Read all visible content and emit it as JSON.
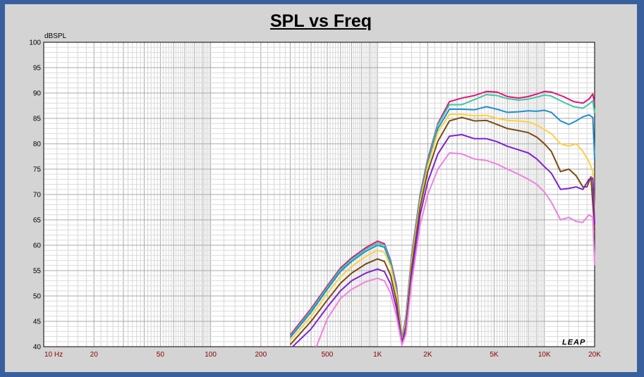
{
  "chart_data": {
    "type": "line",
    "title": "SPL vs Freq",
    "ylabel": "dBSPL",
    "xlabel": "",
    "xscale": "log",
    "xlim": [
      10,
      20000
    ],
    "ylim": [
      40,
      100
    ],
    "grid": true,
    "yticks": [
      40,
      45,
      50,
      55,
      60,
      65,
      70,
      75,
      80,
      85,
      90,
      95,
      100
    ],
    "xticks": [
      {
        "v": 10,
        "label": "10  Hz"
      },
      {
        "v": 20,
        "label": "20"
      },
      {
        "v": 50,
        "label": "50"
      },
      {
        "v": 100,
        "label": "100"
      },
      {
        "v": 200,
        "label": "200"
      },
      {
        "v": 500,
        "label": "500"
      },
      {
        "v": 1000,
        "label": "1K"
      },
      {
        "v": 2000,
        "label": "2K"
      },
      {
        "v": 5000,
        "label": "5K"
      },
      {
        "v": 10000,
        "label": "10K"
      },
      {
        "v": 20000,
        "label": "20K"
      }
    ],
    "series": [
      {
        "color": "#e0147a",
        "points": [
          [
            300,
            42.3
          ],
          [
            400,
            47.5
          ],
          [
            500,
            52
          ],
          [
            600,
            55.5
          ],
          [
            700,
            57.5
          ],
          [
            850,
            59.5
          ],
          [
            1000,
            60.8
          ],
          [
            1100,
            60.3
          ],
          [
            1200,
            57
          ],
          [
            1300,
            52
          ],
          [
            1400,
            41.5
          ],
          [
            1480,
            46
          ],
          [
            1600,
            58
          ],
          [
            1800,
            70
          ],
          [
            2000,
            77
          ],
          [
            2300,
            84
          ],
          [
            2700,
            88.3
          ],
          [
            3200,
            89
          ],
          [
            3800,
            89.5
          ],
          [
            4500,
            90.3
          ],
          [
            5200,
            90.2
          ],
          [
            6000,
            89.3
          ],
          [
            7000,
            89
          ],
          [
            8000,
            89.3
          ],
          [
            9000,
            89.8
          ],
          [
            10000,
            90.3
          ],
          [
            11000,
            90.2
          ],
          [
            13000,
            89.3
          ],
          [
            15000,
            88.3
          ],
          [
            17000,
            88
          ],
          [
            18500,
            88.8
          ],
          [
            19500,
            89.8
          ],
          [
            20000,
            88
          ]
        ]
      },
      {
        "color": "#40c8a0",
        "points": [
          [
            300,
            42
          ],
          [
            400,
            47.2
          ],
          [
            500,
            51.7
          ],
          [
            600,
            55.2
          ],
          [
            700,
            57.2
          ],
          [
            850,
            59.2
          ],
          [
            1000,
            60.4
          ],
          [
            1100,
            60
          ],
          [
            1200,
            56.8
          ],
          [
            1300,
            51.5
          ],
          [
            1400,
            41.3
          ],
          [
            1480,
            45.8
          ],
          [
            1600,
            57.7
          ],
          [
            1800,
            69.7
          ],
          [
            2000,
            76.7
          ],
          [
            2300,
            83.7
          ],
          [
            2700,
            87.7
          ],
          [
            3200,
            87.7
          ],
          [
            3800,
            88.7
          ],
          [
            4500,
            89.7
          ],
          [
            5200,
            89.5
          ],
          [
            6000,
            88.9
          ],
          [
            7000,
            88.6
          ],
          [
            8000,
            88.8
          ],
          [
            9000,
            89.2
          ],
          [
            10000,
            89.6
          ],
          [
            11000,
            89.4
          ],
          [
            13000,
            88.2
          ],
          [
            15000,
            87.3
          ],
          [
            17000,
            87
          ],
          [
            18500,
            87.8
          ],
          [
            19500,
            88.5
          ],
          [
            20000,
            86
          ]
        ]
      },
      {
        "color": "#1e90d0",
        "points": [
          [
            300,
            41.8
          ],
          [
            400,
            46.8
          ],
          [
            500,
            51.3
          ],
          [
            600,
            54.8
          ],
          [
            700,
            56.8
          ],
          [
            850,
            58.8
          ],
          [
            1000,
            60
          ],
          [
            1100,
            59.6
          ],
          [
            1200,
            56.4
          ],
          [
            1300,
            51.2
          ],
          [
            1400,
            41.1
          ],
          [
            1480,
            45.5
          ],
          [
            1600,
            57.3
          ],
          [
            1800,
            69.3
          ],
          [
            2000,
            76.3
          ],
          [
            2300,
            83
          ],
          [
            2700,
            86.8
          ],
          [
            3200,
            86.8
          ],
          [
            3800,
            86.7
          ],
          [
            4500,
            87.3
          ],
          [
            5200,
            86.8
          ],
          [
            6000,
            86.2
          ],
          [
            7000,
            86.3
          ],
          [
            8000,
            86.5
          ],
          [
            9000,
            86.4
          ],
          [
            10000,
            86.6
          ],
          [
            11000,
            86.2
          ],
          [
            12500,
            84.5
          ],
          [
            14000,
            83.8
          ],
          [
            15500,
            84.5
          ],
          [
            17000,
            85.3
          ],
          [
            18500,
            85.7
          ],
          [
            19500,
            85.2
          ],
          [
            20000,
            77
          ]
        ]
      },
      {
        "color": "#ffd040",
        "points": [
          [
            300,
            41.2
          ],
          [
            400,
            46
          ],
          [
            500,
            50.5
          ],
          [
            600,
            53.8
          ],
          [
            700,
            55.8
          ],
          [
            850,
            57.8
          ],
          [
            1000,
            59
          ],
          [
            1100,
            58.6
          ],
          [
            1200,
            55.8
          ],
          [
            1300,
            50.5
          ],
          [
            1400,
            40.9
          ],
          [
            1480,
            45
          ],
          [
            1600,
            56.6
          ],
          [
            1800,
            68.6
          ],
          [
            2000,
            75.6
          ],
          [
            2300,
            82.3
          ],
          [
            2700,
            85.8
          ],
          [
            3200,
            85.8
          ],
          [
            3800,
            85.5
          ],
          [
            4500,
            85.6
          ],
          [
            5200,
            85
          ],
          [
            6000,
            84.6
          ],
          [
            7000,
            84.5
          ],
          [
            8000,
            84.3
          ],
          [
            9000,
            83.7
          ],
          [
            10000,
            82.8
          ],
          [
            11000,
            82
          ],
          [
            12500,
            80
          ],
          [
            14000,
            79.5
          ],
          [
            15500,
            80
          ],
          [
            17000,
            78.5
          ],
          [
            18500,
            76.5
          ],
          [
            19500,
            74.5
          ],
          [
            20000,
            66
          ]
        ]
      },
      {
        "color": "#7a4a10",
        "points": [
          [
            300,
            40.4
          ],
          [
            400,
            45
          ],
          [
            500,
            49.2
          ],
          [
            600,
            52.5
          ],
          [
            700,
            54.5
          ],
          [
            850,
            56.3
          ],
          [
            1000,
            57.3
          ],
          [
            1100,
            56.8
          ],
          [
            1200,
            54
          ],
          [
            1300,
            49
          ],
          [
            1400,
            40.7
          ],
          [
            1480,
            44.2
          ],
          [
            1600,
            55.5
          ],
          [
            1800,
            67.5
          ],
          [
            2000,
            74.5
          ],
          [
            2300,
            80.5
          ],
          [
            2700,
            84.5
          ],
          [
            3200,
            85.2
          ],
          [
            3800,
            84.5
          ],
          [
            4500,
            84.6
          ],
          [
            5200,
            83.8
          ],
          [
            6000,
            83
          ],
          [
            7000,
            82.6
          ],
          [
            8000,
            82.2
          ],
          [
            9000,
            81.3
          ],
          [
            10000,
            80
          ],
          [
            11000,
            78.5
          ],
          [
            12500,
            74.5
          ],
          [
            14000,
            75
          ],
          [
            15500,
            73.7
          ],
          [
            17000,
            71.5
          ],
          [
            18000,
            71.5
          ],
          [
            19000,
            73.5
          ],
          [
            20000,
            63
          ]
        ]
      },
      {
        "color": "#8020d0",
        "points": [
          [
            310,
            40
          ],
          [
            400,
            43.5
          ],
          [
            500,
            47.8
          ],
          [
            600,
            51
          ],
          [
            700,
            53
          ],
          [
            850,
            54.5
          ],
          [
            1000,
            55.3
          ],
          [
            1100,
            54.8
          ],
          [
            1200,
            52.3
          ],
          [
            1300,
            47.5
          ],
          [
            1400,
            40.6
          ],
          [
            1480,
            43.5
          ],
          [
            1600,
            54
          ],
          [
            1800,
            66
          ],
          [
            2000,
            72.5
          ],
          [
            2300,
            78
          ],
          [
            2700,
            81.5
          ],
          [
            3200,
            81.8
          ],
          [
            3800,
            81
          ],
          [
            4500,
            81
          ],
          [
            5200,
            80.4
          ],
          [
            6000,
            79.5
          ],
          [
            7000,
            78.8
          ],
          [
            8000,
            78.2
          ],
          [
            9000,
            77
          ],
          [
            10000,
            75.5
          ],
          [
            11000,
            74.2
          ],
          [
            12500,
            71
          ],
          [
            14000,
            71.2
          ],
          [
            15500,
            71.5
          ],
          [
            17000,
            71
          ],
          [
            18500,
            73
          ],
          [
            19500,
            73.2
          ],
          [
            20000,
            64
          ]
        ]
      },
      {
        "color": "#f080e0",
        "points": [
          [
            430,
            40
          ],
          [
            500,
            45.5
          ],
          [
            600,
            49.5
          ],
          [
            700,
            51.3
          ],
          [
            850,
            52.8
          ],
          [
            1000,
            53.5
          ],
          [
            1100,
            53
          ],
          [
            1200,
            50.5
          ],
          [
            1300,
            46
          ],
          [
            1400,
            40.3
          ],
          [
            1480,
            42.5
          ],
          [
            1600,
            52.5
          ],
          [
            1800,
            64
          ],
          [
            2000,
            70
          ],
          [
            2300,
            75
          ],
          [
            2700,
            78.2
          ],
          [
            3200,
            78
          ],
          [
            3800,
            77
          ],
          [
            4500,
            76.7
          ],
          [
            5200,
            76
          ],
          [
            6000,
            75
          ],
          [
            7000,
            74
          ],
          [
            8000,
            73
          ],
          [
            9000,
            72
          ],
          [
            10000,
            70.5
          ],
          [
            11000,
            68.5
          ],
          [
            12500,
            65
          ],
          [
            14000,
            65.5
          ],
          [
            15500,
            64.7
          ],
          [
            17000,
            64.5
          ],
          [
            18500,
            66
          ],
          [
            19500,
            65.5
          ],
          [
            20000,
            56
          ]
        ]
      }
    ]
  },
  "watermark": "LEAP"
}
